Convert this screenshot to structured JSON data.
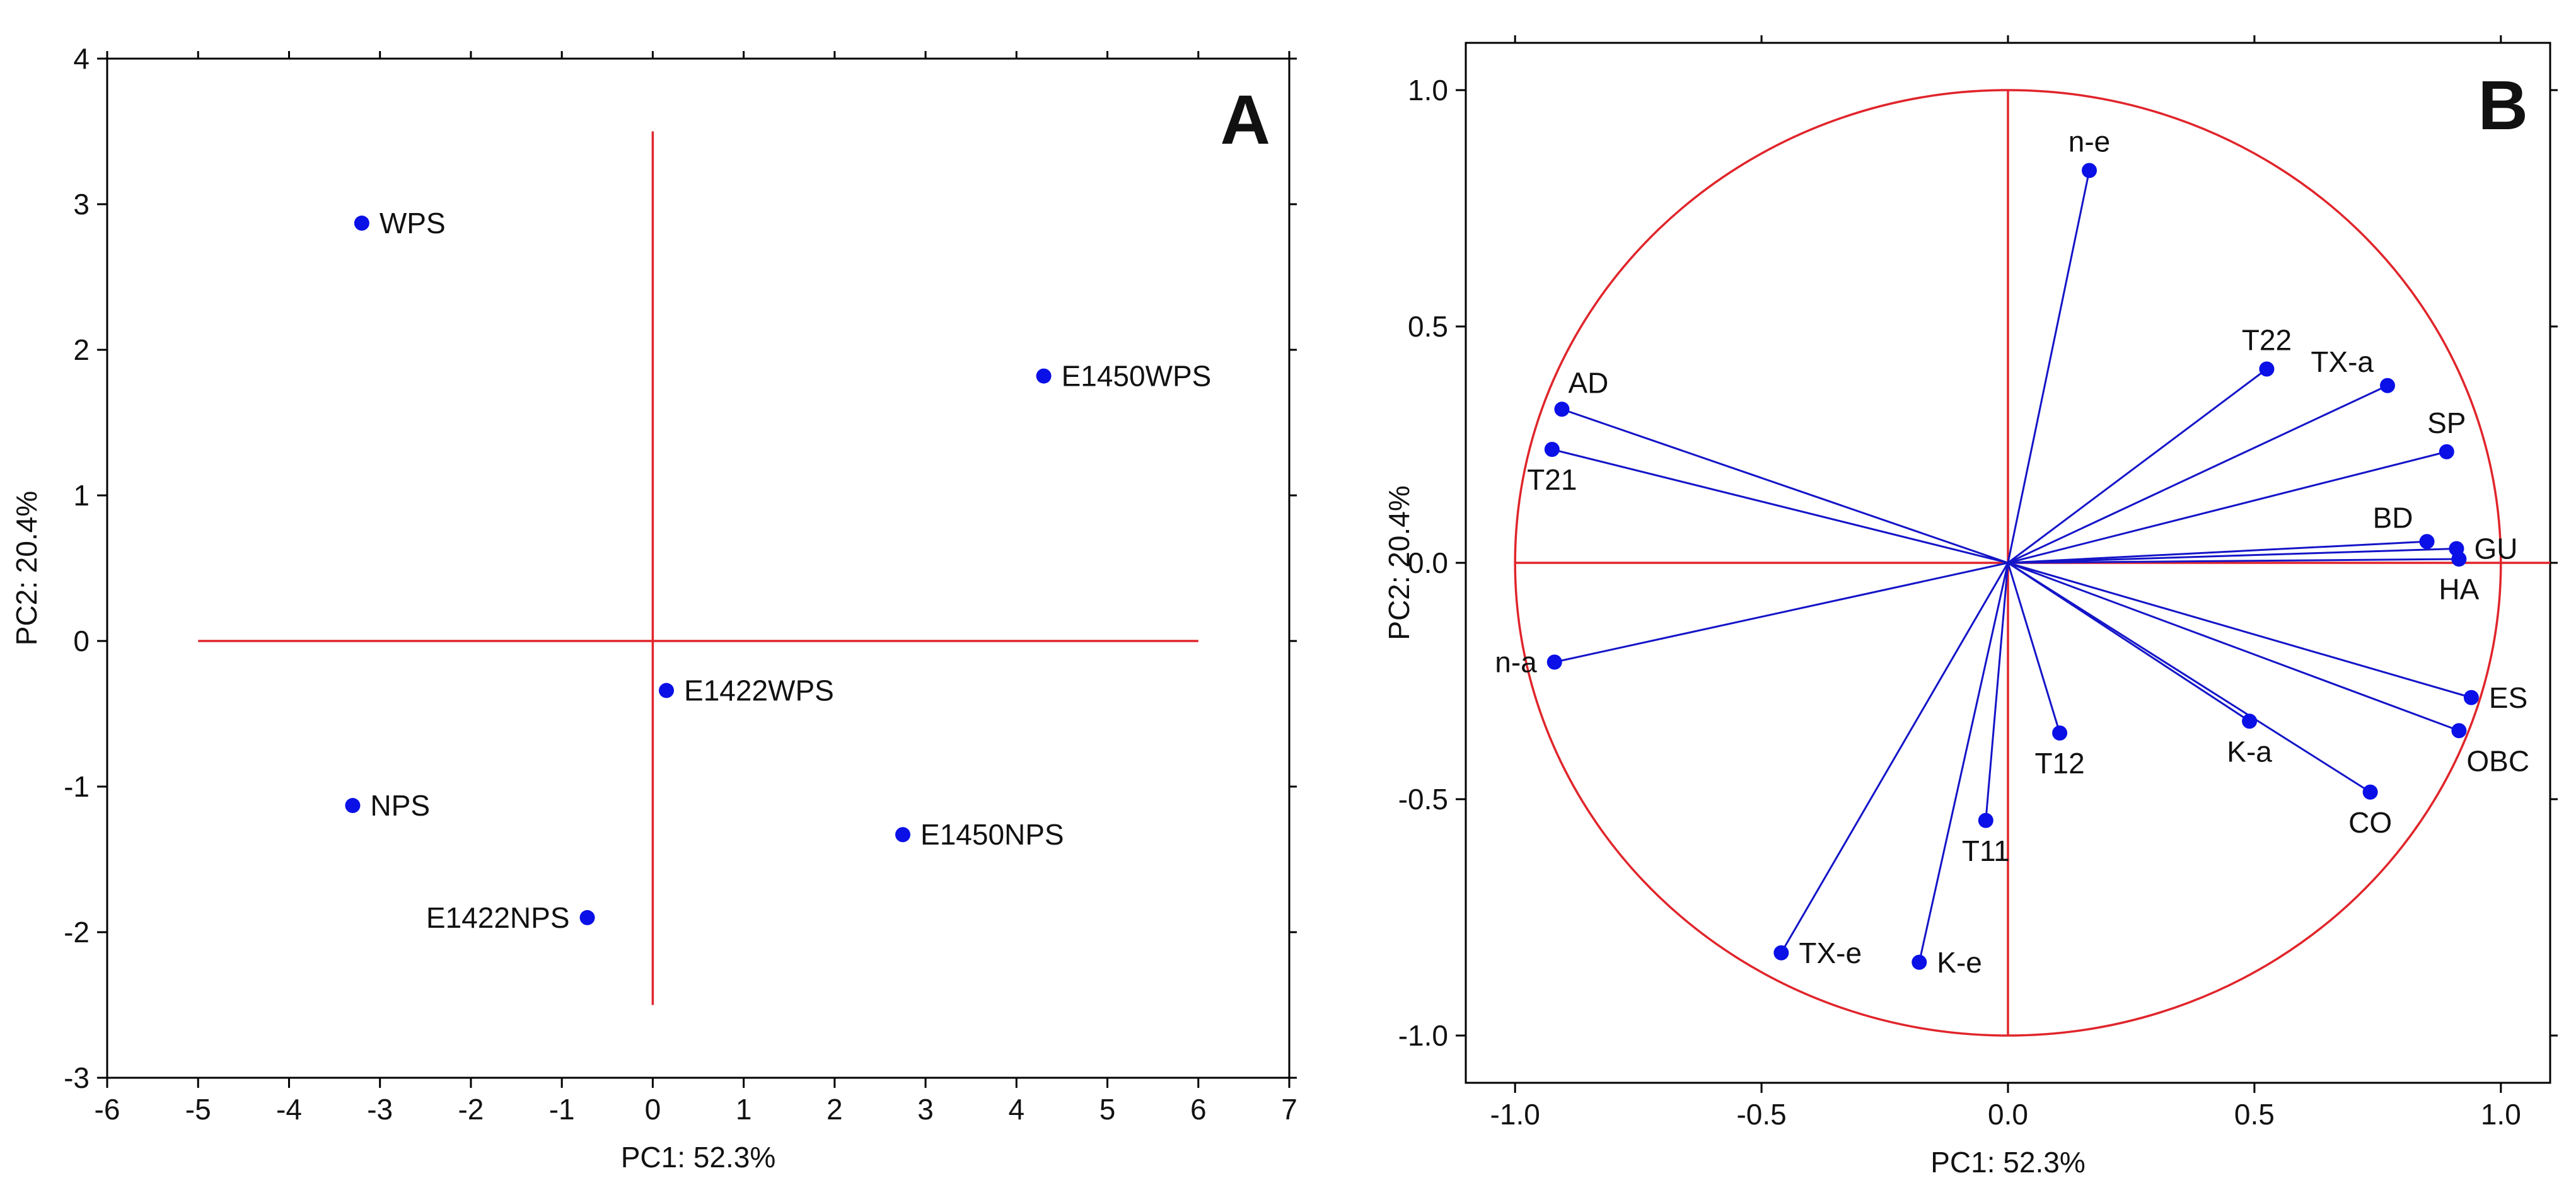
{
  "chart_data": [
    {
      "id": "A",
      "type": "scatter",
      "panel_label": "A",
      "xlabel": "PC1: 52.3%",
      "ylabel": "PC2: 20.4%",
      "xlim": [
        -6,
        7
      ],
      "ylim": [
        -3,
        4
      ],
      "xticks": [
        -6,
        -5,
        -4,
        -3,
        -2,
        -1,
        0,
        1,
        2,
        3,
        4,
        5,
        6,
        7
      ],
      "yticks": [
        -3,
        -2,
        -1,
        0,
        1,
        2,
        3,
        4
      ],
      "xtick_labels": [
        "-6",
        "-5",
        "-4",
        "-3",
        "-2",
        "-1",
        "0",
        "1",
        "2",
        "3",
        "4",
        "5",
        "6",
        "7"
      ],
      "ytick_labels": [
        "-3",
        "-2",
        "-1",
        "0",
        "1",
        "2",
        "3",
        "4"
      ],
      "reference_lines": {
        "horizontal": {
          "y": 0,
          "x_from": -5,
          "x_to": 6
        },
        "vertical": {
          "x": 0,
          "y_from": -2.5,
          "y_to": 3.5
        }
      },
      "points": [
        {
          "label": "WPS",
          "x": -3.2,
          "y": 2.87,
          "label_pos": "right"
        },
        {
          "label": "E1450WPS",
          "x": 4.3,
          "y": 1.82,
          "label_pos": "right"
        },
        {
          "label": "E1422WPS",
          "x": 0.15,
          "y": -0.34,
          "label_pos": "right"
        },
        {
          "label": "NPS",
          "x": -3.3,
          "y": -1.13,
          "label_pos": "right"
        },
        {
          "label": "E1450NPS",
          "x": 2.75,
          "y": -1.33,
          "label_pos": "right"
        },
        {
          "label": "E1422NPS",
          "x": -0.72,
          "y": -1.9,
          "label_pos": "left"
        }
      ]
    },
    {
      "id": "B",
      "type": "scatter",
      "subtype": "loading-vectors",
      "panel_label": "B",
      "xlabel": "PC1: 52.3%",
      "ylabel": "PC2: 20.4%",
      "xlim": [
        -1.1,
        1.1
      ],
      "ylim": [
        -1.1,
        1.1
      ],
      "xticks": [
        -1.0,
        -0.5,
        0.0,
        0.5,
        1.0
      ],
      "yticks": [
        -1.0,
        -0.5,
        0.0,
        0.5,
        1.0
      ],
      "xtick_labels": [
        "-1.0",
        "-0.5",
        "0.0",
        "0.5",
        "1.0"
      ],
      "ytick_labels": [
        "-1.0",
        "-0.5",
        "0.0",
        "0.5",
        "1.0"
      ],
      "unit_circle": true,
      "points": [
        {
          "label": "n-e",
          "x": 0.165,
          "y": 0.83,
          "label_pos": "above"
        },
        {
          "label": "T22",
          "x": 0.525,
          "y": 0.41,
          "label_pos": "above"
        },
        {
          "label": "TX-a",
          "x": 0.77,
          "y": 0.375,
          "label_pos": "above-left"
        },
        {
          "label": "SP",
          "x": 0.89,
          "y": 0.235,
          "label_pos": "above"
        },
        {
          "label": "BD",
          "x": 0.85,
          "y": 0.045,
          "label_pos": "above-left"
        },
        {
          "label": "GU",
          "x": 0.91,
          "y": 0.03,
          "label_pos": "right"
        },
        {
          "label": "HA",
          "x": 0.915,
          "y": 0.008,
          "label_pos": "below"
        },
        {
          "label": "ES",
          "x": 0.94,
          "y": -0.285,
          "label_pos": "right"
        },
        {
          "label": "OBC",
          "x": 0.915,
          "y": -0.355,
          "label_pos": "below-right"
        },
        {
          "label": "CO",
          "x": 0.735,
          "y": -0.485,
          "label_pos": "below"
        },
        {
          "label": "K-a",
          "x": 0.49,
          "y": -0.335,
          "label_pos": "below"
        },
        {
          "label": "T12",
          "x": 0.105,
          "y": -0.36,
          "label_pos": "below"
        },
        {
          "label": "T11",
          "x": -0.045,
          "y": -0.545,
          "label_pos": "below"
        },
        {
          "label": "K-e",
          "x": -0.18,
          "y": -0.845,
          "label_pos": "right"
        },
        {
          "label": "TX-e",
          "x": -0.46,
          "y": -0.825,
          "label_pos": "right"
        },
        {
          "label": "AD",
          "x": -0.905,
          "y": 0.325,
          "label_pos": "above-right"
        },
        {
          "label": "T21",
          "x": -0.925,
          "y": 0.24,
          "label_pos": "below"
        },
        {
          "label": "n-a",
          "x": -0.92,
          "y": -0.21,
          "label_pos": "left"
        }
      ]
    }
  ]
}
